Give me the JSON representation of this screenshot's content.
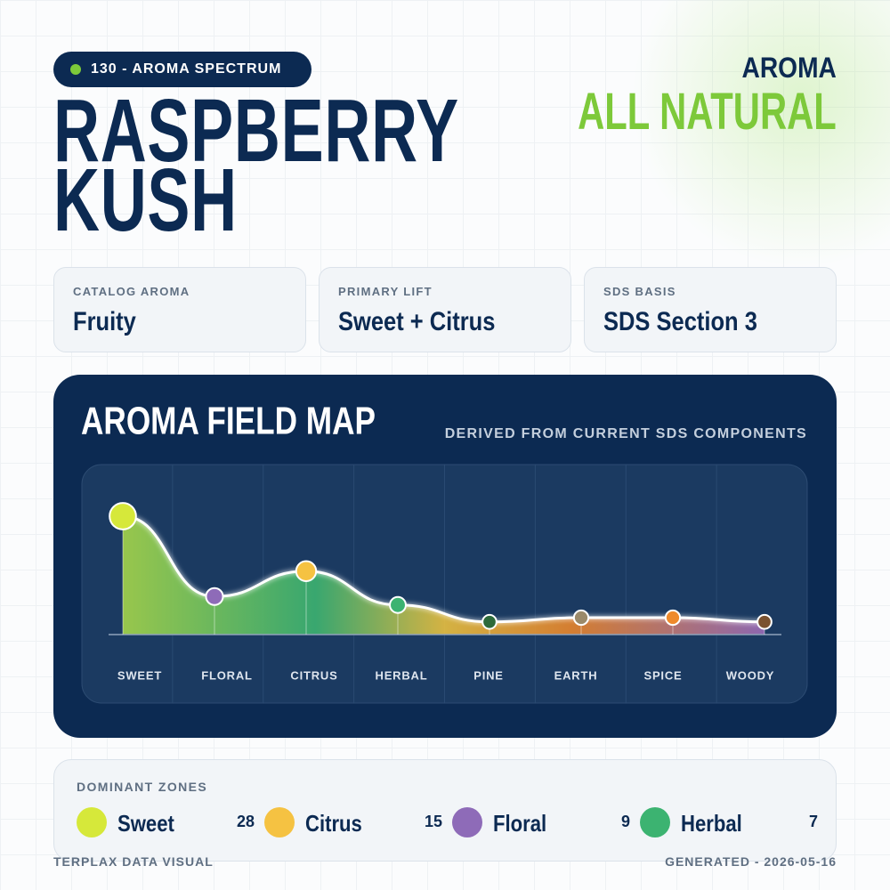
{
  "header": {
    "badge": "130 - AROMA SPECTRUM",
    "title": "RASPBERRY KUSH",
    "kicker": "AROMA",
    "tag": "ALL NATURAL"
  },
  "cards": [
    {
      "label": "CATALOG AROMA",
      "value": "Fruity"
    },
    {
      "label": "PRIMARY LIFT",
      "value": "Sweet + Citrus"
    },
    {
      "label": "SDS BASIS",
      "value": "SDS Section 3"
    }
  ],
  "chart_data": {
    "type": "area",
    "title": "AROMA FIELD MAP",
    "subtitle": "DERIVED FROM CURRENT SDS COMPONENTS",
    "categories": [
      "SWEET",
      "FLORAL",
      "CITRUS",
      "HERBAL",
      "PINE",
      "EARTH",
      "SPICE",
      "WOODY"
    ],
    "values": [
      28,
      9,
      15,
      7,
      3,
      4,
      4,
      3
    ],
    "colors": [
      "#d6e83a",
      "#8e6bb8",
      "#f5c242",
      "#3cb371",
      "#2d6a3a",
      "#9b8a6a",
      "#ee8a2c",
      "#7a5230"
    ]
  },
  "dominant_zones": {
    "title": "DOMINANT ZONES",
    "items": [
      {
        "name": "Sweet",
        "value": 28,
        "color": "#d6e83a"
      },
      {
        "name": "Citrus",
        "value": 15,
        "color": "#f5c242"
      },
      {
        "name": "Floral",
        "value": 9,
        "color": "#8e6bb8"
      },
      {
        "name": "Herbal",
        "value": 7,
        "color": "#3cb371"
      }
    ]
  },
  "footer": {
    "left": "TERPLAX DATA VISUAL",
    "right": "GENERATED - 2026-05-16"
  }
}
